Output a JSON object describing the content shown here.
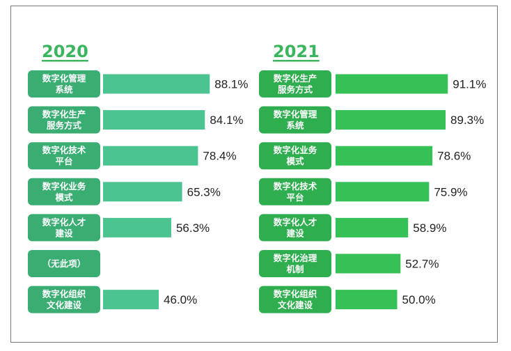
{
  "chart_data": [
    {
      "type": "bar",
      "orientation": "horizontal",
      "title": "2020",
      "unit": "%",
      "categories": [
        "数字化管理\n系统",
        "数字化生产\n服务方式",
        "数字化技术\n平台",
        "数字化业务\n模式",
        "数字化人才\n建设",
        "（无此项）",
        "数字化组织\n文化建设"
      ],
      "values": [
        88.1,
        84.1,
        78.4,
        65.3,
        56.3,
        null,
        46.0
      ],
      "value_labels": [
        "88.1%",
        "84.1%",
        "78.4%",
        "65.3%",
        "56.3%",
        "",
        "46.0%"
      ],
      "xlim": [
        0,
        100
      ],
      "colors": {
        "bar": "#4cc491",
        "label_box": "#3aae72"
      }
    },
    {
      "type": "bar",
      "orientation": "horizontal",
      "title": "2021",
      "unit": "%",
      "categories": [
        "数字化生产\n服务方式",
        "数字化管理\n系统",
        "数字化业务\n模式",
        "数字化技术\n平台",
        "数字化人才\n建设",
        "数字化治理\n机制",
        "数字化组织\n文化建设"
      ],
      "values": [
        91.1,
        89.3,
        78.6,
        75.9,
        58.9,
        52.7,
        50.0
      ],
      "value_labels": [
        "91.1%",
        "89.3%",
        "78.6%",
        "75.9%",
        "58.9%",
        "52.7%",
        "50.0%"
      ],
      "xlim": [
        0,
        100
      ],
      "colors": {
        "bar": "#35c155",
        "label_box": "#2fae4f"
      }
    }
  ],
  "colors": {
    "title": "#3bb55e",
    "frame_border": "#777777"
  }
}
